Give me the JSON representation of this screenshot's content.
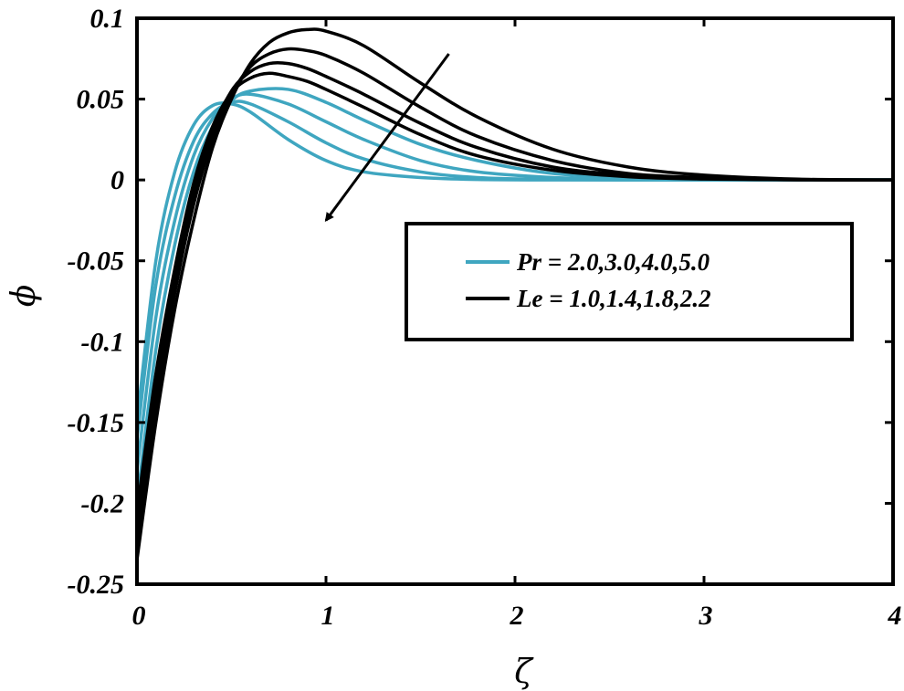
{
  "chart_data": {
    "type": "line",
    "xlabel": "ζ",
    "ylabel": "ϕ",
    "xlim": [
      0,
      4
    ],
    "ylim": [
      -0.25,
      0.1
    ],
    "xticks": [
      "0",
      "1",
      "2",
      "3",
      "4"
    ],
    "yticks": [
      "0.1",
      "0.05",
      "0",
      "-0.05",
      "-0.1",
      "-0.15",
      "-0.2",
      "-0.25"
    ],
    "grid": false,
    "legend_position": "center-right",
    "legend": [
      {
        "label": "Pr = 2.0,3.0,4.0,5.0",
        "color": "#3fa6c0"
      },
      {
        "label": "Le = 1.0,1.4,1.8,2.2",
        "color": "#000000"
      }
    ],
    "series": [
      {
        "group": "Pr",
        "color": "#3fa6c0",
        "x": [
          0,
          0.1,
          0.2,
          0.3,
          0.4,
          0.5,
          0.6,
          0.8,
          1.0,
          1.2,
          1.5,
          1.8,
          2.2,
          2.6,
          3.0,
          3.5,
          4.0
        ],
        "y": [
          -0.2,
          -0.105,
          -0.04,
          0.005,
          0.033,
          0.049,
          0.055,
          0.056,
          0.048,
          0.037,
          0.022,
          0.012,
          0.004,
          0.0015,
          0.0005,
          0.0001,
          0
        ]
      },
      {
        "group": "Pr",
        "color": "#3fa6c0",
        "x": [
          0,
          0.1,
          0.2,
          0.3,
          0.4,
          0.5,
          0.6,
          0.8,
          1.0,
          1.2,
          1.5,
          1.8,
          2.2,
          2.6,
          3.0,
          3.5,
          4.0
        ],
        "y": [
          -0.18,
          -0.085,
          -0.025,
          0.015,
          0.038,
          0.05,
          0.053,
          0.047,
          0.036,
          0.025,
          0.012,
          0.005,
          0.0015,
          0.0004,
          0.0001,
          0,
          0
        ]
      },
      {
        "group": "Pr",
        "color": "#3fa6c0",
        "x": [
          0,
          0.1,
          0.2,
          0.3,
          0.4,
          0.5,
          0.6,
          0.8,
          1.0,
          1.2,
          1.5,
          1.8,
          2.2,
          2.6,
          3.0,
          3.5,
          4.0
        ],
        "y": [
          -0.16,
          -0.065,
          -0.01,
          0.024,
          0.041,
          0.048,
          0.047,
          0.036,
          0.023,
          0.013,
          0.005,
          0.0015,
          0.0003,
          0,
          0,
          0,
          0
        ]
      },
      {
        "group": "Pr",
        "color": "#3fa6c0",
        "x": [
          0,
          0.1,
          0.2,
          0.3,
          0.4,
          0.5,
          0.6,
          0.8,
          1.0,
          1.2,
          1.5,
          1.8,
          2.2,
          2.6,
          3.0,
          3.5,
          4.0
        ],
        "y": [
          -0.15,
          -0.05,
          0.005,
          0.034,
          0.046,
          0.047,
          0.042,
          0.025,
          0.012,
          0.005,
          0.0015,
          0.0003,
          0,
          0,
          0,
          0,
          0
        ]
      },
      {
        "group": "Le",
        "color": "#000000",
        "x": [
          0,
          0.1,
          0.2,
          0.3,
          0.4,
          0.5,
          0.6,
          0.7,
          0.8,
          0.9,
          1.0,
          1.2,
          1.5,
          1.8,
          2.2,
          2.6,
          3.0,
          3.5,
          4.0
        ],
        "y": [
          -0.235,
          -0.15,
          -0.08,
          -0.025,
          0.02,
          0.05,
          0.072,
          0.085,
          0.091,
          0.093,
          0.092,
          0.083,
          0.06,
          0.039,
          0.019,
          0.008,
          0.003,
          0.0005,
          0
        ]
      },
      {
        "group": "Le",
        "color": "#000000",
        "x": [
          0,
          0.1,
          0.2,
          0.3,
          0.4,
          0.5,
          0.6,
          0.7,
          0.8,
          0.9,
          1.0,
          1.2,
          1.5,
          1.8,
          2.2,
          2.6,
          3.0,
          3.5,
          4.0
        ],
        "y": [
          -0.225,
          -0.14,
          -0.07,
          -0.015,
          0.025,
          0.053,
          0.07,
          0.078,
          0.081,
          0.08,
          0.077,
          0.066,
          0.045,
          0.027,
          0.012,
          0.004,
          0.0015,
          0.0002,
          0
        ]
      },
      {
        "group": "Le",
        "color": "#000000",
        "x": [
          0,
          0.1,
          0.2,
          0.3,
          0.4,
          0.5,
          0.6,
          0.7,
          0.8,
          0.9,
          1.0,
          1.2,
          1.5,
          1.8,
          2.2,
          2.6,
          3.0,
          3.5,
          4.0
        ],
        "y": [
          -0.215,
          -0.13,
          -0.062,
          -0.008,
          0.03,
          0.055,
          0.067,
          0.072,
          0.072,
          0.069,
          0.064,
          0.053,
          0.035,
          0.02,
          0.008,
          0.003,
          0.001,
          0.0001,
          0
        ]
      },
      {
        "group": "Le",
        "color": "#000000",
        "x": [
          0,
          0.1,
          0.2,
          0.3,
          0.4,
          0.5,
          0.6,
          0.7,
          0.8,
          0.9,
          1.0,
          1.2,
          1.5,
          1.8,
          2.2,
          2.6,
          3.0,
          3.5,
          4.0
        ],
        "y": [
          -0.205,
          -0.12,
          -0.055,
          -0.002,
          0.033,
          0.054,
          0.063,
          0.066,
          0.064,
          0.061,
          0.056,
          0.045,
          0.028,
          0.015,
          0.006,
          0.002,
          0.0006,
          0.0001,
          0
        ]
      }
    ],
    "annotations": [
      {
        "type": "arrow",
        "from": [
          1.65,
          0.078
        ],
        "to": [
          1.0,
          -0.025
        ],
        "color": "#000000"
      }
    ]
  }
}
